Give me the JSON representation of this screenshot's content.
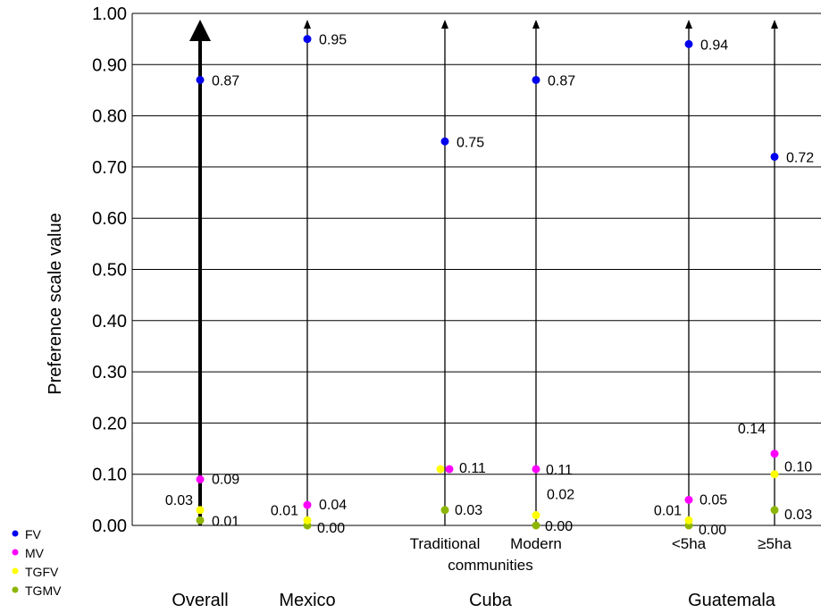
{
  "chart_data": {
    "type": "scatter",
    "ylabel": "Preference scale value",
    "ylim": [
      0,
      1
    ],
    "y_ticks": [
      "0.00",
      "0.10",
      "0.20",
      "0.30",
      "0.40",
      "0.50",
      "0.60",
      "0.70",
      "0.80",
      "0.90",
      "1.00"
    ],
    "grid": true,
    "groups": [
      {
        "name": "Overall",
        "columns": [
          {
            "label": [],
            "values": {
              "FV": 0.87,
              "MV": 0.09,
              "TGFV": 0.03,
              "TGMV": 0.01
            },
            "labels": {
              "FV": "0.87",
              "MV": "0.09",
              "TGFV": "0.03",
              "TGMV": "0.01"
            }
          }
        ]
      },
      {
        "name": "Mexico",
        "columns": [
          {
            "label": [],
            "values": {
              "FV": 0.95,
              "MV": 0.04,
              "TGFV": 0.01,
              "TGMV": 0.0
            },
            "labels": {
              "FV": "0.95",
              "MV": "0.04",
              "TGFV": "0.01",
              "TGMV": "0.00"
            }
          }
        ]
      },
      {
        "name": "Cuba",
        "columns": [
          {
            "label": [
              "Traditional",
              "communities"
            ],
            "values": {
              "FV": 0.75,
              "MV": 0.11,
              "TGFV": 0.11,
              "TGMV": 0.03
            },
            "labels": {
              "FV": "0.75",
              "MV": "0.11",
              "TGFV": "",
              "TGMV": "0.03"
            }
          },
          {
            "label": [
              "Modern"
            ],
            "values": {
              "FV": 0.87,
              "MV": 0.11,
              "TGFV": 0.02,
              "TGMV": 0.0
            },
            "labels": {
              "FV": "0.87",
              "MV": "0.11",
              "TGFV": "0.02",
              "TGMV": "0.00"
            }
          }
        ]
      },
      {
        "name": "Guatemala",
        "columns": [
          {
            "label": [
              "<5ha"
            ],
            "values": {
              "FV": 0.94,
              "MV": 0.05,
              "TGFV": 0.01,
              "TGMV": 0.0
            },
            "labels": {
              "FV": "0.94",
              "MV": "0.05",
              "TGFV": "0.01",
              "TGMV": "0.00"
            }
          },
          {
            "label": [
              "≥5ha"
            ],
            "values": {
              "FV": 0.72,
              "MV": 0.14,
              "TGFV": 0.1,
              "TGMV": 0.03
            },
            "labels": {
              "FV": "0.72",
              "MV": "0.14",
              "TGFV": "0.10",
              "TGMV": "0.03"
            }
          }
        ]
      }
    ],
    "series": [
      {
        "name": "FV",
        "color": "#0000ee"
      },
      {
        "name": "MV",
        "color": "#ff00ff"
      },
      {
        "name": "TGFV",
        "color": "#ffff00"
      },
      {
        "name": "TGMV",
        "color": "#8db500"
      }
    ],
    "legend": "bottom-left"
  }
}
